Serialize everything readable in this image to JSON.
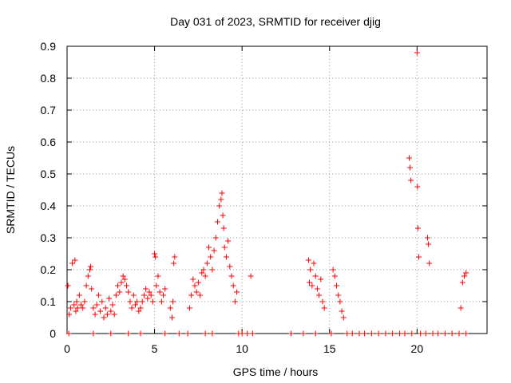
{
  "chart_data": {
    "type": "scatter",
    "title": "Day 031 of 2023, SRMTID for receiver djig",
    "xlabel": "GPS time / hours",
    "ylabel": "SRMTID / TECUs",
    "xlim": [
      0,
      24
    ],
    "ylim": [
      0,
      0.9
    ],
    "xticks": [
      "0",
      "5",
      "10",
      "15",
      "20"
    ],
    "yticks": [
      "0",
      "0.1",
      "0.2",
      "0.3",
      "0.4",
      "0.5",
      "0.6",
      "0.7",
      "0.8",
      "0.9"
    ],
    "grid": true,
    "marker": "+",
    "series": [
      {
        "name": "SRMTID",
        "color": "#ff0000",
        "x": [
          0.05,
          0.12,
          0.2,
          0.3,
          0.4,
          0.45,
          0.5,
          0.55,
          0.6,
          0.7,
          0.8,
          0.9,
          1.0,
          1.1,
          1.2,
          1.3,
          1.35,
          1.4,
          1.5,
          1.6,
          1.7,
          1.8,
          1.9,
          2.0,
          2.1,
          2.2,
          2.3,
          2.4,
          2.5,
          2.6,
          2.7,
          2.8,
          2.9,
          3.0,
          3.1,
          3.2,
          3.3,
          3.4,
          3.5,
          3.6,
          3.7,
          3.8,
          3.9,
          4.0,
          4.1,
          4.2,
          4.3,
          4.4,
          4.5,
          4.6,
          4.7,
          4.8,
          4.9,
          5.0,
          5.05,
          5.1,
          5.2,
          5.3,
          5.4,
          5.5,
          5.6,
          5.9,
          6.0,
          6.05,
          6.1,
          6.15,
          7.0,
          7.1,
          7.2,
          7.3,
          7.4,
          7.5,
          7.6,
          7.7,
          7.8,
          7.9,
          8.0,
          8.1,
          8.2,
          8.3,
          8.4,
          8.5,
          8.6,
          8.7,
          8.8,
          8.85,
          8.9,
          8.95,
          9.0,
          9.1,
          9.2,
          9.3,
          9.4,
          9.5,
          9.6,
          9.7,
          10.5,
          13.8,
          13.85,
          13.9,
          14.0,
          14.1,
          14.2,
          14.3,
          14.4,
          14.5,
          14.6,
          14.7,
          15.2,
          15.3,
          15.4,
          15.5,
          15.6,
          15.7,
          15.8,
          19.55,
          19.6,
          19.65,
          20.0,
          20.02,
          20.05,
          20.1,
          20.6,
          20.65,
          20.7,
          22.5,
          22.6,
          22.7,
          22.8,
          0.1,
          1.5,
          2.5,
          3.5,
          4.2,
          5.6,
          6.4,
          6.9,
          7.9,
          8.3,
          9.8,
          10.0,
          10.3,
          10.6,
          12.8,
          13.5,
          14.2,
          15.1,
          16.0,
          16.3,
          16.7,
          17.0,
          17.4,
          17.8,
          18.2,
          18.6,
          19.0,
          19.3,
          19.7,
          20.2,
          20.5,
          20.9,
          21.2,
          21.6,
          22.0,
          22.4,
          22.8
        ],
        "y": [
          0.15,
          0.06,
          0.08,
          0.22,
          0.09,
          0.23,
          0.07,
          0.1,
          0.08,
          0.12,
          0.09,
          0.08,
          0.1,
          0.15,
          0.18,
          0.2,
          0.21,
          0.14,
          0.08,
          0.06,
          0.09,
          0.12,
          0.07,
          0.1,
          0.05,
          0.08,
          0.06,
          0.11,
          0.07,
          0.09,
          0.06,
          0.12,
          0.15,
          0.13,
          0.16,
          0.18,
          0.17,
          0.15,
          0.13,
          0.1,
          0.08,
          0.12,
          0.09,
          0.1,
          0.07,
          0.08,
          0.1,
          0.12,
          0.14,
          0.11,
          0.13,
          0.12,
          0.1,
          0.25,
          0.24,
          0.15,
          0.18,
          0.13,
          0.1,
          0.12,
          0.14,
          0.08,
          0.05,
          0.1,
          0.22,
          0.24,
          0.08,
          0.12,
          0.17,
          0.15,
          0.13,
          0.16,
          0.12,
          0.19,
          0.2,
          0.18,
          0.22,
          0.27,
          0.24,
          0.2,
          0.26,
          0.3,
          0.35,
          0.4,
          0.42,
          0.44,
          0.37,
          0.33,
          0.27,
          0.24,
          0.29,
          0.21,
          0.18,
          0.15,
          0.1,
          0.13,
          0.18,
          0.23,
          0.16,
          0.2,
          0.15,
          0.22,
          0.18,
          0.14,
          0.12,
          0.17,
          0.1,
          0.08,
          0.2,
          0.18,
          0.15,
          0.12,
          0.1,
          0.07,
          0.05,
          0.55,
          0.52,
          0.48,
          0.88,
          0.46,
          0.33,
          0.24,
          0.3,
          0.28,
          0.22,
          0.08,
          0.16,
          0.18,
          0.19,
          0,
          0,
          0,
          0,
          0,
          0,
          0,
          0,
          0,
          0,
          0,
          0,
          0,
          0,
          0,
          0,
          0,
          0,
          0,
          0,
          0,
          0,
          0,
          0,
          0,
          0,
          0,
          0,
          0,
          0,
          0,
          0,
          0,
          0,
          0,
          0,
          0
        ]
      }
    ]
  }
}
